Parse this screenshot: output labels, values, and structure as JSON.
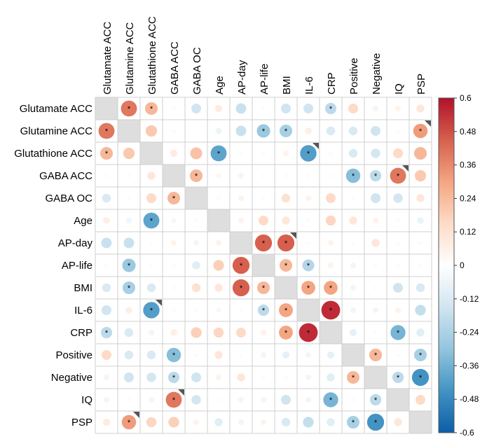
{
  "chart_data": {
    "type": "correlation-matrix",
    "title": "",
    "variables": [
      "Glutamate ACC",
      "Glutamine ACC",
      "Glutathione ACC",
      "GABA ACC",
      "GABA OC",
      "Age",
      "AP-day",
      "AP-life",
      "BMI",
      "IL-6",
      "CRP",
      "Positive",
      "Negative",
      "IQ",
      "PSP"
    ],
    "color_scale": {
      "min": -0.6,
      "max": 0.6,
      "ticks": [
        0.6,
        0.48,
        0.36,
        0.24,
        0.12,
        0,
        -0.12,
        -0.24,
        -0.36,
        -0.48,
        -0.6
      ],
      "tick_labels": [
        "0.6",
        "0.48",
        "0.36",
        "0.24",
        "0.12",
        "0",
        "-0.12",
        "-0.24",
        "-0.36",
        "-0.48",
        "-0.6"
      ],
      "low_color": "#0b5ea8",
      "mid_color": "#ffffff",
      "high_color": "#b2102a"
    },
    "correlations": [
      [
        0,
        0.4,
        0.25,
        0.02,
        -0.15,
        0.08,
        -0.17,
        0.02,
        -0.15,
        -0.15,
        -0.2,
        0.15,
        -0.05,
        0.05,
        0.1
      ],
      [
        0.4,
        0,
        0.2,
        0.02,
        0.01,
        -0.06,
        -0.17,
        -0.28,
        -0.25,
        0.07,
        -0.12,
        -0.12,
        -0.15,
        0.02,
        0.32
      ],
      [
        0.25,
        0.2,
        0,
        0.08,
        0.22,
        -0.4,
        0.02,
        0.02,
        0.05,
        -0.42,
        0.02,
        -0.12,
        -0.14,
        0.15,
        0.25
      ],
      [
        0.02,
        0.02,
        0.1,
        0,
        0.25,
        0.04,
        0.05,
        0.02,
        0.02,
        0.02,
        0.02,
        -0.32,
        -0.2,
        0.4,
        0.2
      ],
      [
        -0.12,
        0.02,
        0.15,
        0.25,
        0,
        0.02,
        0.05,
        0.02,
        0.12,
        0.05,
        0.15,
        0.02,
        -0.15,
        -0.14,
        0.1
      ],
      [
        0.07,
        -0.05,
        -0.4,
        0.04,
        0.02,
        0,
        0.05,
        0.15,
        0.1,
        0.02,
        0.16,
        0.1,
        0.05,
        0.02,
        -0.07
      ],
      [
        -0.17,
        -0.17,
        0.02,
        0.05,
        -0.05,
        0.05,
        0,
        0.45,
        0.45,
        0.02,
        0.05,
        0.02,
        0.1,
        0.02,
        0.02
      ],
      [
        0.02,
        -0.28,
        0.02,
        0.02,
        -0.1,
        0.18,
        0.45,
        0,
        0.25,
        -0.22,
        0.05,
        -0.05,
        0.02,
        0.02,
        0.02
      ],
      [
        -0.12,
        -0.25,
        -0.12,
        0.02,
        0.12,
        0.1,
        0.45,
        0.25,
        0,
        0.3,
        0.3,
        -0.05,
        0.02,
        -0.15,
        -0.12
      ],
      [
        -0.15,
        0.07,
        -0.42,
        0.02,
        0.02,
        0.04,
        0.02,
        -0.2,
        0.3,
        0,
        0.55,
        -0.05,
        -0.05,
        0.05,
        -0.18
      ],
      [
        -0.2,
        -0.12,
        -0.05,
        0.07,
        0.18,
        0.16,
        0.15,
        0.05,
        0.3,
        0.55,
        0,
        -0.08,
        0.02,
        -0.35,
        -0.1
      ],
      [
        0.15,
        -0.12,
        -0.12,
        -0.32,
        0.02,
        0.1,
        0.02,
        -0.05,
        -0.08,
        -0.05,
        -0.08,
        0,
        0.25,
        -0.02,
        -0.25
      ],
      [
        -0.05,
        -0.15,
        -0.14,
        -0.2,
        -0.15,
        0.05,
        0.1,
        0.02,
        0.02,
        -0.05,
        -0.1,
        0.25,
        0,
        -0.2,
        -0.45
      ],
      [
        0.05,
        0.02,
        0.05,
        0.4,
        -0.14,
        0.02,
        0.05,
        0.05,
        -0.15,
        -0.05,
        -0.35,
        -0.02,
        -0.2,
        0,
        0.15
      ],
      [
        0.08,
        0.32,
        0.16,
        0.18,
        0.05,
        -0.1,
        -0.05,
        0.05,
        -0.12,
        -0.18,
        -0.1,
        -0.25,
        -0.45,
        0.1,
        0
      ]
    ],
    "significance_marker": "*",
    "significant_pairs": [
      [
        0,
        1
      ],
      [
        0,
        2
      ],
      [
        0,
        10
      ],
      [
        1,
        0
      ],
      [
        1,
        7
      ],
      [
        1,
        8
      ],
      [
        1,
        14
      ],
      [
        2,
        0
      ],
      [
        2,
        5
      ],
      [
        2,
        9
      ],
      [
        3,
        4
      ],
      [
        3,
        11
      ],
      [
        3,
        12
      ],
      [
        3,
        13
      ],
      [
        4,
        3
      ],
      [
        5,
        2
      ],
      [
        6,
        7
      ],
      [
        6,
        8
      ],
      [
        7,
        1
      ],
      [
        7,
        6
      ],
      [
        7,
        8
      ],
      [
        7,
        9
      ],
      [
        8,
        1
      ],
      [
        8,
        6
      ],
      [
        8,
        7
      ],
      [
        8,
        9
      ],
      [
        8,
        10
      ],
      [
        9,
        2
      ],
      [
        9,
        7
      ],
      [
        9,
        8
      ],
      [
        9,
        10
      ],
      [
        10,
        0
      ],
      [
        10,
        8
      ],
      [
        10,
        9
      ],
      [
        10,
        13
      ],
      [
        11,
        3
      ],
      [
        11,
        12
      ],
      [
        11,
        14
      ],
      [
        12,
        3
      ],
      [
        12,
        11
      ],
      [
        12,
        13
      ],
      [
        12,
        14
      ],
      [
        13,
        3
      ],
      [
        13,
        10
      ],
      [
        13,
        12
      ],
      [
        14,
        1
      ],
      [
        14,
        11
      ],
      [
        14,
        12
      ]
    ],
    "flagged_pairs": [
      [
        1,
        14
      ],
      [
        2,
        9
      ],
      [
        3,
        13
      ],
      [
        6,
        8
      ],
      [
        9,
        2
      ],
      [
        13,
        3
      ],
      [
        14,
        1
      ]
    ],
    "legend_placement": "right"
  }
}
